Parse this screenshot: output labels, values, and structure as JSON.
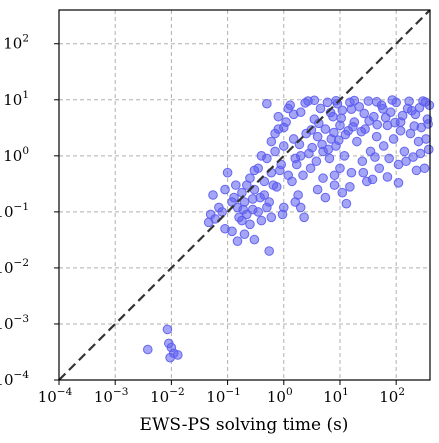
{
  "chart_data": {
    "type": "scatter",
    "title": "",
    "xlabel": "EWS-PS solving time (s)",
    "ylabel": "",
    "x_scale": "log",
    "y_scale": "log",
    "xlim": [
      0.0001,
      400
    ],
    "ylim": [
      0.0001,
      400
    ],
    "grid": true,
    "legend": "none",
    "x_ticks": [
      {
        "value": 0.0001,
        "base": "10",
        "exp": "−4"
      },
      {
        "value": 0.001,
        "base": "10",
        "exp": "−3"
      },
      {
        "value": 0.01,
        "base": "10",
        "exp": "−2"
      },
      {
        "value": 0.1,
        "base": "10",
        "exp": "−1"
      },
      {
        "value": 1,
        "base": "10",
        "exp": "0"
      },
      {
        "value": 10,
        "base": "10",
        "exp": "1"
      },
      {
        "value": 100,
        "base": "10",
        "exp": "2"
      }
    ],
    "y_ticks": [
      {
        "value": 0.0001,
        "base": "10",
        "exp": "−4"
      },
      {
        "value": 0.001,
        "base": "10",
        "exp": "−3"
      },
      {
        "value": 0.01,
        "base": "10",
        "exp": "−2"
      },
      {
        "value": 0.1,
        "base": "10",
        "exp": "−1"
      },
      {
        "value": 1,
        "base": "10",
        "exp": "0"
      },
      {
        "value": 10,
        "base": "10",
        "exp": "1"
      },
      {
        "value": 100,
        "base": "10",
        "exp": "2"
      }
    ],
    "reference_line": {
      "style": "dashed",
      "from": [
        0.0001,
        0.0001
      ],
      "to": [
        400,
        400
      ],
      "color": "#333333"
    },
    "marker_color": "#5b5bf0",
    "points": [
      [
        0.0038,
        0.00035
      ],
      [
        0.0085,
        0.0008
      ],
      [
        0.009,
        0.00045
      ],
      [
        0.0095,
        0.00025
      ],
      [
        0.011,
        0.0003
      ],
      [
        0.013,
        0.00028
      ],
      [
        0.01,
        0.00038
      ],
      [
        0.046,
        0.065
      ],
      [
        0.05,
        0.09
      ],
      [
        0.06,
        0.075
      ],
      [
        0.055,
        0.2
      ],
      [
        0.07,
        0.12
      ],
      [
        0.08,
        0.1
      ],
      [
        0.09,
        0.05
      ],
      [
        0.12,
        0.045
      ],
      [
        0.1,
        0.5
      ],
      [
        0.13,
        0.18
      ],
      [
        0.14,
        0.3
      ],
      [
        0.15,
        0.12
      ],
      [
        0.16,
        0.08
      ],
      [
        0.18,
        0.22
      ],
      [
        0.2,
        0.15
      ],
      [
        0.2,
        0.04
      ],
      [
        0.22,
        0.09
      ],
      [
        0.25,
        0.4
      ],
      [
        0.28,
        0.11
      ],
      [
        0.3,
        0.032
      ],
      [
        0.3,
        0.25
      ],
      [
        0.35,
        0.6
      ],
      [
        0.38,
        0.18
      ],
      [
        0.4,
        0.07
      ],
      [
        0.45,
        0.35
      ],
      [
        0.5,
        0.9
      ],
      [
        0.5,
        8.5
      ],
      [
        0.55,
        0.02
      ],
      [
        0.55,
        0.15
      ],
      [
        0.6,
        0.5
      ],
      [
        0.7,
        1.2
      ],
      [
        0.75,
        0.28
      ],
      [
        0.8,
        3.0
      ],
      [
        0.9,
        0.7
      ],
      [
        1.0,
        0.12
      ],
      [
        1.0,
        1.5
      ],
      [
        1.1,
        4.0
      ],
      [
        1.2,
        0.45
      ],
      [
        1.3,
        8.0
      ],
      [
        1.5,
        2.0
      ],
      [
        1.6,
        0.9
      ],
      [
        1.8,
        0.2
      ],
      [
        2.0,
        1.0
      ],
      [
        2.0,
        6.0
      ],
      [
        2.3,
        0.08
      ],
      [
        2.5,
        2.5
      ],
      [
        2.7,
        9.5
      ],
      [
        3.0,
        0.6
      ],
      [
        3.2,
        1.4
      ],
      [
        3.5,
        4.5
      ],
      [
        4.0,
        0.25
      ],
      [
        4.0,
        2.2
      ],
      [
        4.5,
        7.0
      ],
      [
        5.0,
        1.2
      ],
      [
        5.0,
        0.4
      ],
      [
        5.5,
        3.0
      ],
      [
        6.0,
        9.0
      ],
      [
        6.5,
        0.9
      ],
      [
        7.0,
        2.0
      ],
      [
        7.5,
        5.0
      ],
      [
        8.0,
        0.3
      ],
      [
        8.5,
        1.5
      ],
      [
        9.0,
        8.5
      ],
      [
        10.0,
        3.5
      ],
      [
        10.0,
        0.6
      ],
      [
        11.0,
        6.5
      ],
      [
        12.0,
        1.0
      ],
      [
        13.0,
        0.14
      ],
      [
        14.0,
        2.8
      ],
      [
        15.0,
        9.0
      ],
      [
        16.0,
        0.5
      ],
      [
        18.0,
        4.0
      ],
      [
        20.0,
        1.8
      ],
      [
        22.0,
        7.5
      ],
      [
        25.0,
        0.8
      ],
      [
        28.0,
        3.0
      ],
      [
        30.0,
        0.35
      ],
      [
        32.0,
        9.5
      ],
      [
        35.0,
        1.2
      ],
      [
        40.0,
        5.0
      ],
      [
        45.0,
        2.2
      ],
      [
        50.0,
        0.6
      ],
      [
        55.0,
        8.0
      ],
      [
        60.0,
        1.5
      ],
      [
        70.0,
        3.5
      ],
      [
        75.0,
        0.9
      ],
      [
        80.0,
        6.0
      ],
      [
        90.0,
        2.0
      ],
      [
        100.0,
        9.0
      ],
      [
        110.0,
        0.7
      ],
      [
        120.0,
        4.0
      ],
      [
        140.0,
        1.2
      ],
      [
        160.0,
        7.0
      ],
      [
        180.0,
        2.5
      ],
      [
        200.0,
        0.95
      ],
      [
        220.0,
        5.5
      ],
      [
        250.0,
        1.8
      ],
      [
        280.0,
        3.2
      ],
      [
        300.0,
        9.5
      ],
      [
        320.0,
        0.6
      ],
      [
        340.0,
        2.0
      ],
      [
        360.0,
        4.5
      ],
      [
        380.0,
        1.3
      ],
      [
        390.0,
        8.0
      ],
      [
        0.15,
        0.03
      ],
      [
        0.25,
        0.06
      ],
      [
        0.35,
        0.1
      ],
      [
        0.45,
        0.2
      ],
      [
        0.65,
        0.3
      ],
      [
        0.85,
        0.55
      ],
      [
        1.4,
        0.35
      ],
      [
        1.7,
        0.7
      ],
      [
        2.2,
        0.45
      ],
      [
        2.8,
        1.1
      ],
      [
        3.8,
        0.8
      ],
      [
        4.8,
        1.6
      ],
      [
        6.2,
        1.3
      ],
      [
        7.8,
        2.6
      ],
      [
        9.5,
        1.9
      ],
      [
        12.5,
        2.4
      ],
      [
        17.0,
        3.3
      ],
      [
        24.0,
        2.7
      ],
      [
        33.0,
        4.2
      ],
      [
        46.0,
        3.6
      ],
      [
        65.0,
        4.8
      ],
      [
        95.0,
        3.9
      ],
      [
        130.0,
        5.2
      ],
      [
        190.0,
        6.4
      ],
      [
        260.0,
        7.2
      ],
      [
        370.0,
        3.7
      ],
      [
        0.6,
        1.8
      ],
      [
        1.0,
        3.2
      ],
      [
        1.5,
        5.5
      ],
      [
        2.4,
        8.8
      ],
      [
        0.8,
        5.0
      ],
      [
        1.2,
        7.0
      ],
      [
        0.95,
        0.09
      ],
      [
        1.6,
        0.15
      ],
      [
        0.3,
        0.55
      ],
      [
        0.4,
        1.0
      ],
      [
        0.7,
        2.5
      ],
      [
        5.5,
        0.18
      ],
      [
        8.0,
        0.45
      ],
      [
        15.0,
        0.28
      ],
      [
        26.0,
        0.5
      ],
      [
        42.0,
        0.95
      ],
      [
        70.0,
        0.42
      ],
      [
        150.0,
        0.8
      ],
      [
        270.0,
        1.1
      ],
      [
        0.12,
        0.15
      ],
      [
        0.09,
        0.25
      ],
      [
        0.18,
        0.07
      ],
      [
        0.22,
        0.3
      ],
      [
        3.5,
        9.8
      ],
      [
        8.5,
        9.6
      ],
      [
        18.0,
        9.7
      ],
      [
        45.0,
        9.2
      ],
      [
        85.0,
        9.9
      ],
      [
        170.0,
        9.4
      ],
      [
        330.0,
        9.1
      ],
      [
        2.0,
        0.12
      ],
      [
        11.0,
        0.22
      ],
      [
        38.0,
        0.38
      ],
      [
        110.0,
        0.33
      ],
      [
        230.0,
        0.55
      ],
      [
        0.5,
        0.12
      ],
      [
        0.6,
        0.08
      ],
      [
        0.28,
        0.17
      ],
      [
        0.19,
        0.11
      ],
      [
        1.9,
        1.6
      ],
      [
        3.1,
        2.9
      ],
      [
        4.2,
        3.8
      ],
      [
        6.8,
        5.9
      ],
      [
        10.5,
        4.7
      ],
      [
        16.0,
        6.8
      ],
      [
        27.0,
        5.7
      ],
      [
        58.0,
        6.9
      ],
      [
        120.0,
        2.8
      ],
      [
        210.0,
        3.4
      ]
    ]
  }
}
